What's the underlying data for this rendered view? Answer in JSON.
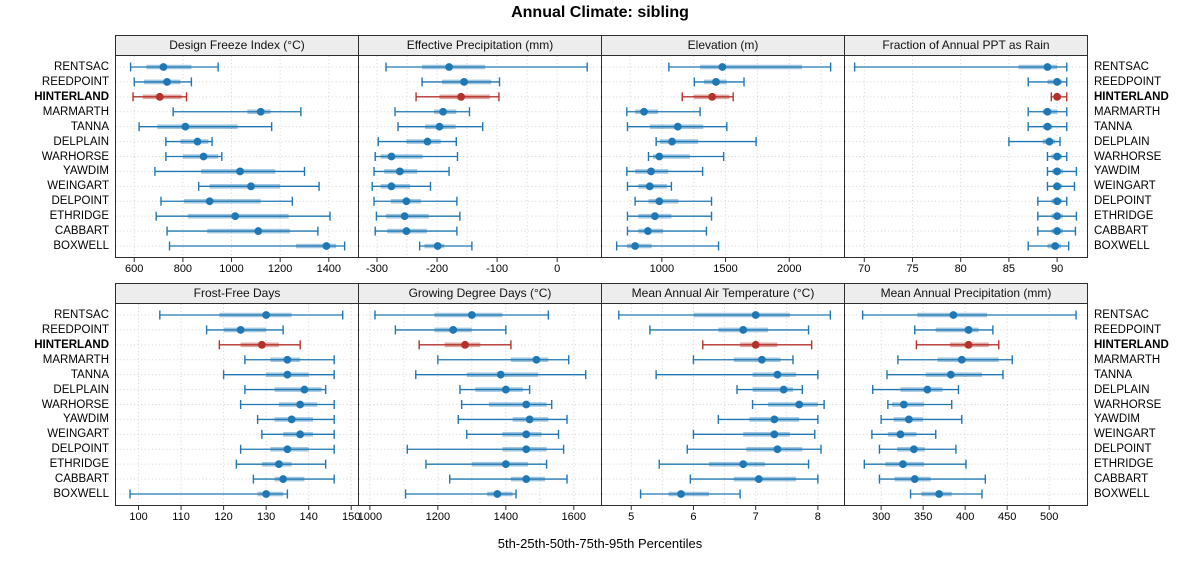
{
  "title": "Annual Climate: sibling",
  "caption": "5th-25th-50th-75th-95th Percentiles",
  "colors": {
    "series": "#1F77B4",
    "highlight": "#B5322C",
    "strip_bg": "#EDEDED",
    "grid": "#D3D3D3",
    "border": "#2E2E2E"
  },
  "stations": [
    "RENTSAC",
    "REEDPOINT",
    "HINTERLAND",
    "MARMARTH",
    "TANNA",
    "DELPLAIN",
    "WARHORSE",
    "YAWDIM",
    "WEINGART",
    "DELPOINT",
    "ETHRIDGE",
    "CABBART",
    "BOXWELL"
  ],
  "highlight_station": "HINTERLAND",
  "percentile_labels": [
    "p5",
    "p25",
    "p50",
    "p75",
    "p95"
  ],
  "chart_data": [
    {
      "type": "line",
      "title": "Design Freeze Index (°C)",
      "grid_row": 0,
      "xlim": [
        525,
        1520
      ],
      "ticks": [
        600,
        800,
        1000,
        1200,
        1400
      ],
      "grid_minor": false,
      "values": [
        [
          585,
          650,
          720,
          835,
          945
        ],
        [
          600,
          640,
          735,
          790,
          835
        ],
        [
          595,
          635,
          705,
          795,
          815
        ],
        [
          760,
          1065,
          1120,
          1160,
          1285
        ],
        [
          620,
          695,
          810,
          1025,
          1165
        ],
        [
          730,
          790,
          860,
          905,
          920
        ],
        [
          730,
          800,
          885,
          945,
          960
        ],
        [
          685,
          875,
          1035,
          1180,
          1300
        ],
        [
          865,
          910,
          1080,
          1200,
          1360
        ],
        [
          710,
          805,
          910,
          1120,
          1250
        ],
        [
          690,
          820,
          1015,
          1235,
          1405
        ],
        [
          735,
          900,
          1110,
          1240,
          1355
        ],
        [
          745,
          1265,
          1390,
          1430,
          1465
        ]
      ]
    },
    {
      "type": "line",
      "title": "Effective Precipitation (mm)",
      "grid_row": 0,
      "xlim": [
        -330,
        73
      ],
      "ticks": [
        -300,
        -200,
        -100,
        0
      ],
      "grid_minor": true,
      "values": [
        [
          -285,
          -225,
          -180,
          -120,
          50
        ],
        [
          -225,
          -192,
          -155,
          -110,
          -96
        ],
        [
          -235,
          -196,
          -160,
          -112,
          -97
        ],
        [
          -270,
          -205,
          -190,
          -168,
          -146
        ],
        [
          -265,
          -220,
          -196,
          -169,
          -124
        ],
        [
          -298,
          -251,
          -216,
          -194,
          -168
        ],
        [
          -303,
          -294,
          -276,
          -224,
          -166
        ],
        [
          -305,
          -288,
          -262,
          -233,
          -180
        ],
        [
          -308,
          -294,
          -276,
          -245,
          -211
        ],
        [
          -305,
          -277,
          -251,
          -227,
          -167
        ],
        [
          -301,
          -285,
          -254,
          -214,
          -162
        ],
        [
          -303,
          -283,
          -251,
          -217,
          -167
        ],
        [
          -229,
          -221,
          -199,
          -188,
          -142
        ]
      ]
    },
    {
      "type": "line",
      "title": "Elevation (m)",
      "grid_row": 0,
      "xlim": [
        530,
        2430
      ],
      "ticks": [
        1000,
        1500,
        2000
      ],
      "grid_minor": true,
      "values": [
        [
          1055,
          1300,
          1475,
          2100,
          2325
        ],
        [
          1255,
          1330,
          1425,
          1510,
          1645
        ],
        [
          1160,
          1250,
          1395,
          1530,
          1560
        ],
        [
          725,
          790,
          860,
          970,
          1300
        ],
        [
          730,
          905,
          1125,
          1325,
          1510
        ],
        [
          955,
          985,
          1080,
          1285,
          1740
        ],
        [
          895,
          930,
          980,
          1220,
          1485
        ],
        [
          725,
          790,
          915,
          1050,
          1320
        ],
        [
          730,
          815,
          905,
          1040,
          1075
        ],
        [
          790,
          895,
          980,
          1130,
          1390
        ],
        [
          730,
          815,
          945,
          1075,
          1390
        ],
        [
          730,
          815,
          890,
          1010,
          1350
        ],
        [
          645,
          725,
          790,
          920,
          1445
        ]
      ]
    },
    {
      "type": "line",
      "title": "Fraction of Annual PPT as Rain",
      "grid_row": 0,
      "xlim": [
        68,
        93.1
      ],
      "ticks": [
        70,
        75,
        80,
        85,
        90
      ],
      "grid_minor": false,
      "values": [
        [
          69,
          86,
          89,
          90,
          91
        ],
        [
          87,
          89,
          90,
          90.5,
          91
        ],
        [
          89.4,
          89.7,
          90,
          90.4,
          91
        ],
        [
          87,
          88.5,
          89,
          90,
          91
        ],
        [
          87,
          88.5,
          89,
          89.5,
          91
        ],
        [
          85,
          88.5,
          89.2,
          89.8,
          90.3
        ],
        [
          89,
          89.4,
          90,
          90.5,
          91
        ],
        [
          89,
          89.5,
          90,
          90.6,
          92
        ],
        [
          89,
          89.6,
          90,
          90.5,
          91.8
        ],
        [
          88,
          89.4,
          90,
          90.5,
          91
        ],
        [
          88,
          89.4,
          90,
          90.6,
          92
        ],
        [
          88,
          89.4,
          90,
          90.6,
          91.9
        ],
        [
          87,
          89,
          89.8,
          90.4,
          91.2
        ]
      ]
    },
    {
      "type": "line",
      "title": "Frost-Free Days",
      "grid_row": 1,
      "xlim": [
        94.7,
        151.6
      ],
      "ticks": [
        100,
        110,
        120,
        130,
        140,
        150
      ],
      "grid_minor": false,
      "values": [
        [
          105,
          119,
          130,
          136,
          148
        ],
        [
          116,
          120,
          124,
          130,
          134
        ],
        [
          119,
          124,
          129,
          133,
          138
        ],
        [
          125,
          131,
          135,
          138,
          146
        ],
        [
          120,
          130,
          135,
          140,
          146
        ],
        [
          125,
          132,
          139,
          143,
          144
        ],
        [
          124,
          133,
          138,
          142,
          146
        ],
        [
          128,
          132,
          136,
          141,
          146
        ],
        [
          129,
          134,
          138,
          141,
          146
        ],
        [
          124,
          131,
          135,
          140,
          146
        ],
        [
          123,
          129,
          133,
          136,
          144
        ],
        [
          127,
          132,
          134,
          139,
          146
        ],
        [
          98,
          128,
          130,
          134,
          135
        ]
      ]
    },
    {
      "type": "line",
      "title": "Growing Degree Days (°C)",
      "grid_row": 1,
      "xlim": [
        968,
        1680
      ],
      "ticks": [
        1000,
        1200,
        1400,
        1600
      ],
      "grid_minor": true,
      "values": [
        [
          1015,
          1190,
          1300,
          1390,
          1525
        ],
        [
          1075,
          1190,
          1245,
          1300,
          1400
        ],
        [
          1145,
          1220,
          1280,
          1325,
          1415
        ],
        [
          1200,
          1415,
          1490,
          1525,
          1585
        ],
        [
          1135,
          1285,
          1385,
          1495,
          1635
        ],
        [
          1265,
          1310,
          1400,
          1450,
          1470
        ],
        [
          1270,
          1350,
          1460,
          1520,
          1535
        ],
        [
          1260,
          1420,
          1470,
          1525,
          1580
        ],
        [
          1285,
          1390,
          1460,
          1505,
          1555
        ],
        [
          1110,
          1390,
          1460,
          1520,
          1570
        ],
        [
          1165,
          1300,
          1400,
          1465,
          1520
        ],
        [
          1235,
          1415,
          1460,
          1515,
          1580
        ],
        [
          1105,
          1345,
          1375,
          1420,
          1430
        ]
      ]
    },
    {
      "type": "line",
      "title": "Mean Annual Air Temperature (°C)",
      "grid_row": 1,
      "xlim": [
        4.53,
        8.42
      ],
      "ticks": [
        5,
        6,
        7,
        8
      ],
      "grid_minor": true,
      "values": [
        [
          4.8,
          6.0,
          7.0,
          7.55,
          8.2
        ],
        [
          5.3,
          6.4,
          6.8,
          7.2,
          7.85
        ],
        [
          6.15,
          6.75,
          7.0,
          7.35,
          7.9
        ],
        [
          6.0,
          6.65,
          7.1,
          7.4,
          7.6
        ],
        [
          5.4,
          6.95,
          7.35,
          7.65,
          8.0
        ],
        [
          6.7,
          6.95,
          7.45,
          7.6,
          7.75
        ],
        [
          6.95,
          7.2,
          7.7,
          8.0,
          8.1
        ],
        [
          6.4,
          6.9,
          7.3,
          7.7,
          8.0
        ],
        [
          6.0,
          6.8,
          7.3,
          7.55,
          7.95
        ],
        [
          5.9,
          6.85,
          7.35,
          7.75,
          8.05
        ],
        [
          5.45,
          6.25,
          6.8,
          7.15,
          7.85
        ],
        [
          5.95,
          6.65,
          7.05,
          7.65,
          8.0
        ],
        [
          5.15,
          5.6,
          5.8,
          6.25,
          6.75
        ]
      ]
    },
    {
      "type": "line",
      "title": "Mean Annual Precipitation (mm)",
      "grid_row": 1,
      "xlim": [
        257,
        545
      ],
      "ticks": [
        300,
        350,
        400,
        450,
        500
      ],
      "grid_minor": false,
      "values": [
        [
          278,
          343,
          386,
          426,
          532
        ],
        [
          340,
          365,
          404,
          416,
          433
        ],
        [
          342,
          382,
          404,
          428,
          440
        ],
        [
          320,
          367,
          396,
          440,
          456
        ],
        [
          307,
          353,
          383,
          420,
          445
        ],
        [
          290,
          323,
          355,
          373,
          392
        ],
        [
          308,
          313,
          327,
          351,
          384
        ],
        [
          300,
          315,
          333,
          350,
          396
        ],
        [
          289,
          308,
          323,
          342,
          365
        ],
        [
          298,
          319,
          339,
          352,
          389
        ],
        [
          280,
          305,
          326,
          351,
          401
        ],
        [
          298,
          316,
          340,
          359,
          424
        ],
        [
          335,
          348,
          369,
          384,
          420
        ]
      ]
    }
  ]
}
